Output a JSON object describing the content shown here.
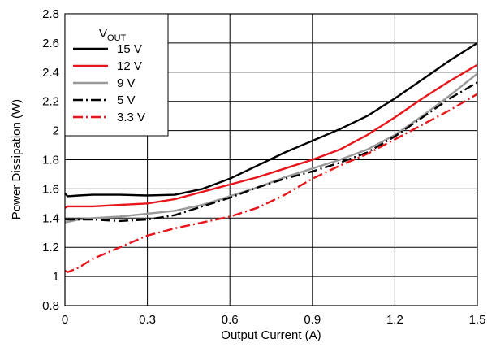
{
  "chart_data": {
    "type": "line",
    "xlabel": "Output Current (A)",
    "ylabel": "Power Dissipation (W)",
    "xlim": [
      0,
      1.5
    ],
    "ylim": [
      0.8,
      2.8
    ],
    "xticks": [
      0,
      0.3,
      0.6,
      0.9,
      1.2,
      1.5
    ],
    "xtick_labels": [
      "0",
      "0.3",
      "0.6",
      "0.9",
      "1.2",
      "1.5"
    ],
    "yticks": [
      0.8,
      1.0,
      1.2,
      1.4,
      1.6,
      1.8,
      2.0,
      2.2,
      2.4,
      2.6,
      2.8
    ],
    "ytick_labels": [
      "0.8",
      "1",
      "1.2",
      "1.4",
      "1.6",
      "1.8",
      "2",
      "2.2",
      "2.4",
      "2.6",
      "2.8"
    ],
    "grid": true,
    "legend": {
      "title_main": "V",
      "title_sub": "OUT",
      "position": "top-left"
    },
    "series": [
      {
        "name": "15 V",
        "color": "#000000",
        "style": "solid",
        "x": [
          0,
          0.01,
          0.05,
          0.1,
          0.2,
          0.3,
          0.4,
          0.5,
          0.6,
          0.7,
          0.8,
          0.9,
          1.0,
          1.1,
          1.2,
          1.3,
          1.4,
          1.5
        ],
        "y": [
          1.57,
          1.55,
          1.555,
          1.56,
          1.56,
          1.555,
          1.56,
          1.6,
          1.67,
          1.76,
          1.85,
          1.93,
          2.01,
          2.1,
          2.22,
          2.35,
          2.48,
          2.6
        ]
      },
      {
        "name": "12 V",
        "color": "#e8161b",
        "style": "solid",
        "x": [
          0,
          0.01,
          0.05,
          0.1,
          0.2,
          0.3,
          0.4,
          0.5,
          0.6,
          0.7,
          0.8,
          0.9,
          1.0,
          1.1,
          1.2,
          1.3,
          1.4,
          1.5
        ],
        "y": [
          1.47,
          1.48,
          1.48,
          1.48,
          1.49,
          1.5,
          1.53,
          1.58,
          1.63,
          1.68,
          1.74,
          1.8,
          1.87,
          1.97,
          2.09,
          2.22,
          2.34,
          2.45
        ]
      },
      {
        "name": "9 V",
        "color": "#999999",
        "style": "solid",
        "x": [
          0,
          0.05,
          0.1,
          0.2,
          0.3,
          0.4,
          0.5,
          0.6,
          0.7,
          0.8,
          0.9,
          1.0,
          1.1,
          1.2,
          1.3,
          1.4,
          1.5
        ],
        "y": [
          1.37,
          1.39,
          1.4,
          1.41,
          1.43,
          1.45,
          1.49,
          1.55,
          1.61,
          1.68,
          1.74,
          1.8,
          1.87,
          1.97,
          2.1,
          2.24,
          2.39
        ]
      },
      {
        "name": "5 V",
        "color": "#000000",
        "style": "dashdot",
        "x": [
          0,
          0.05,
          0.1,
          0.2,
          0.3,
          0.4,
          0.5,
          0.6,
          0.7,
          0.8,
          0.9,
          1.0,
          1.1,
          1.2,
          1.3,
          1.4,
          1.5
        ],
        "y": [
          1.39,
          1.39,
          1.39,
          1.38,
          1.39,
          1.42,
          1.48,
          1.54,
          1.61,
          1.67,
          1.72,
          1.78,
          1.85,
          1.96,
          2.09,
          2.22,
          2.33
        ]
      },
      {
        "name": "3.3 V",
        "color": "#e8161b",
        "style": "dashdot",
        "x": [
          0,
          0.01,
          0.05,
          0.1,
          0.2,
          0.3,
          0.4,
          0.5,
          0.6,
          0.7,
          0.8,
          0.9,
          1.0,
          1.1,
          1.2,
          1.3,
          1.4,
          1.5
        ],
        "y": [
          1.04,
          1.03,
          1.06,
          1.12,
          1.2,
          1.28,
          1.33,
          1.37,
          1.41,
          1.47,
          1.56,
          1.67,
          1.76,
          1.84,
          1.94,
          2.04,
          2.14,
          2.25
        ]
      }
    ]
  }
}
